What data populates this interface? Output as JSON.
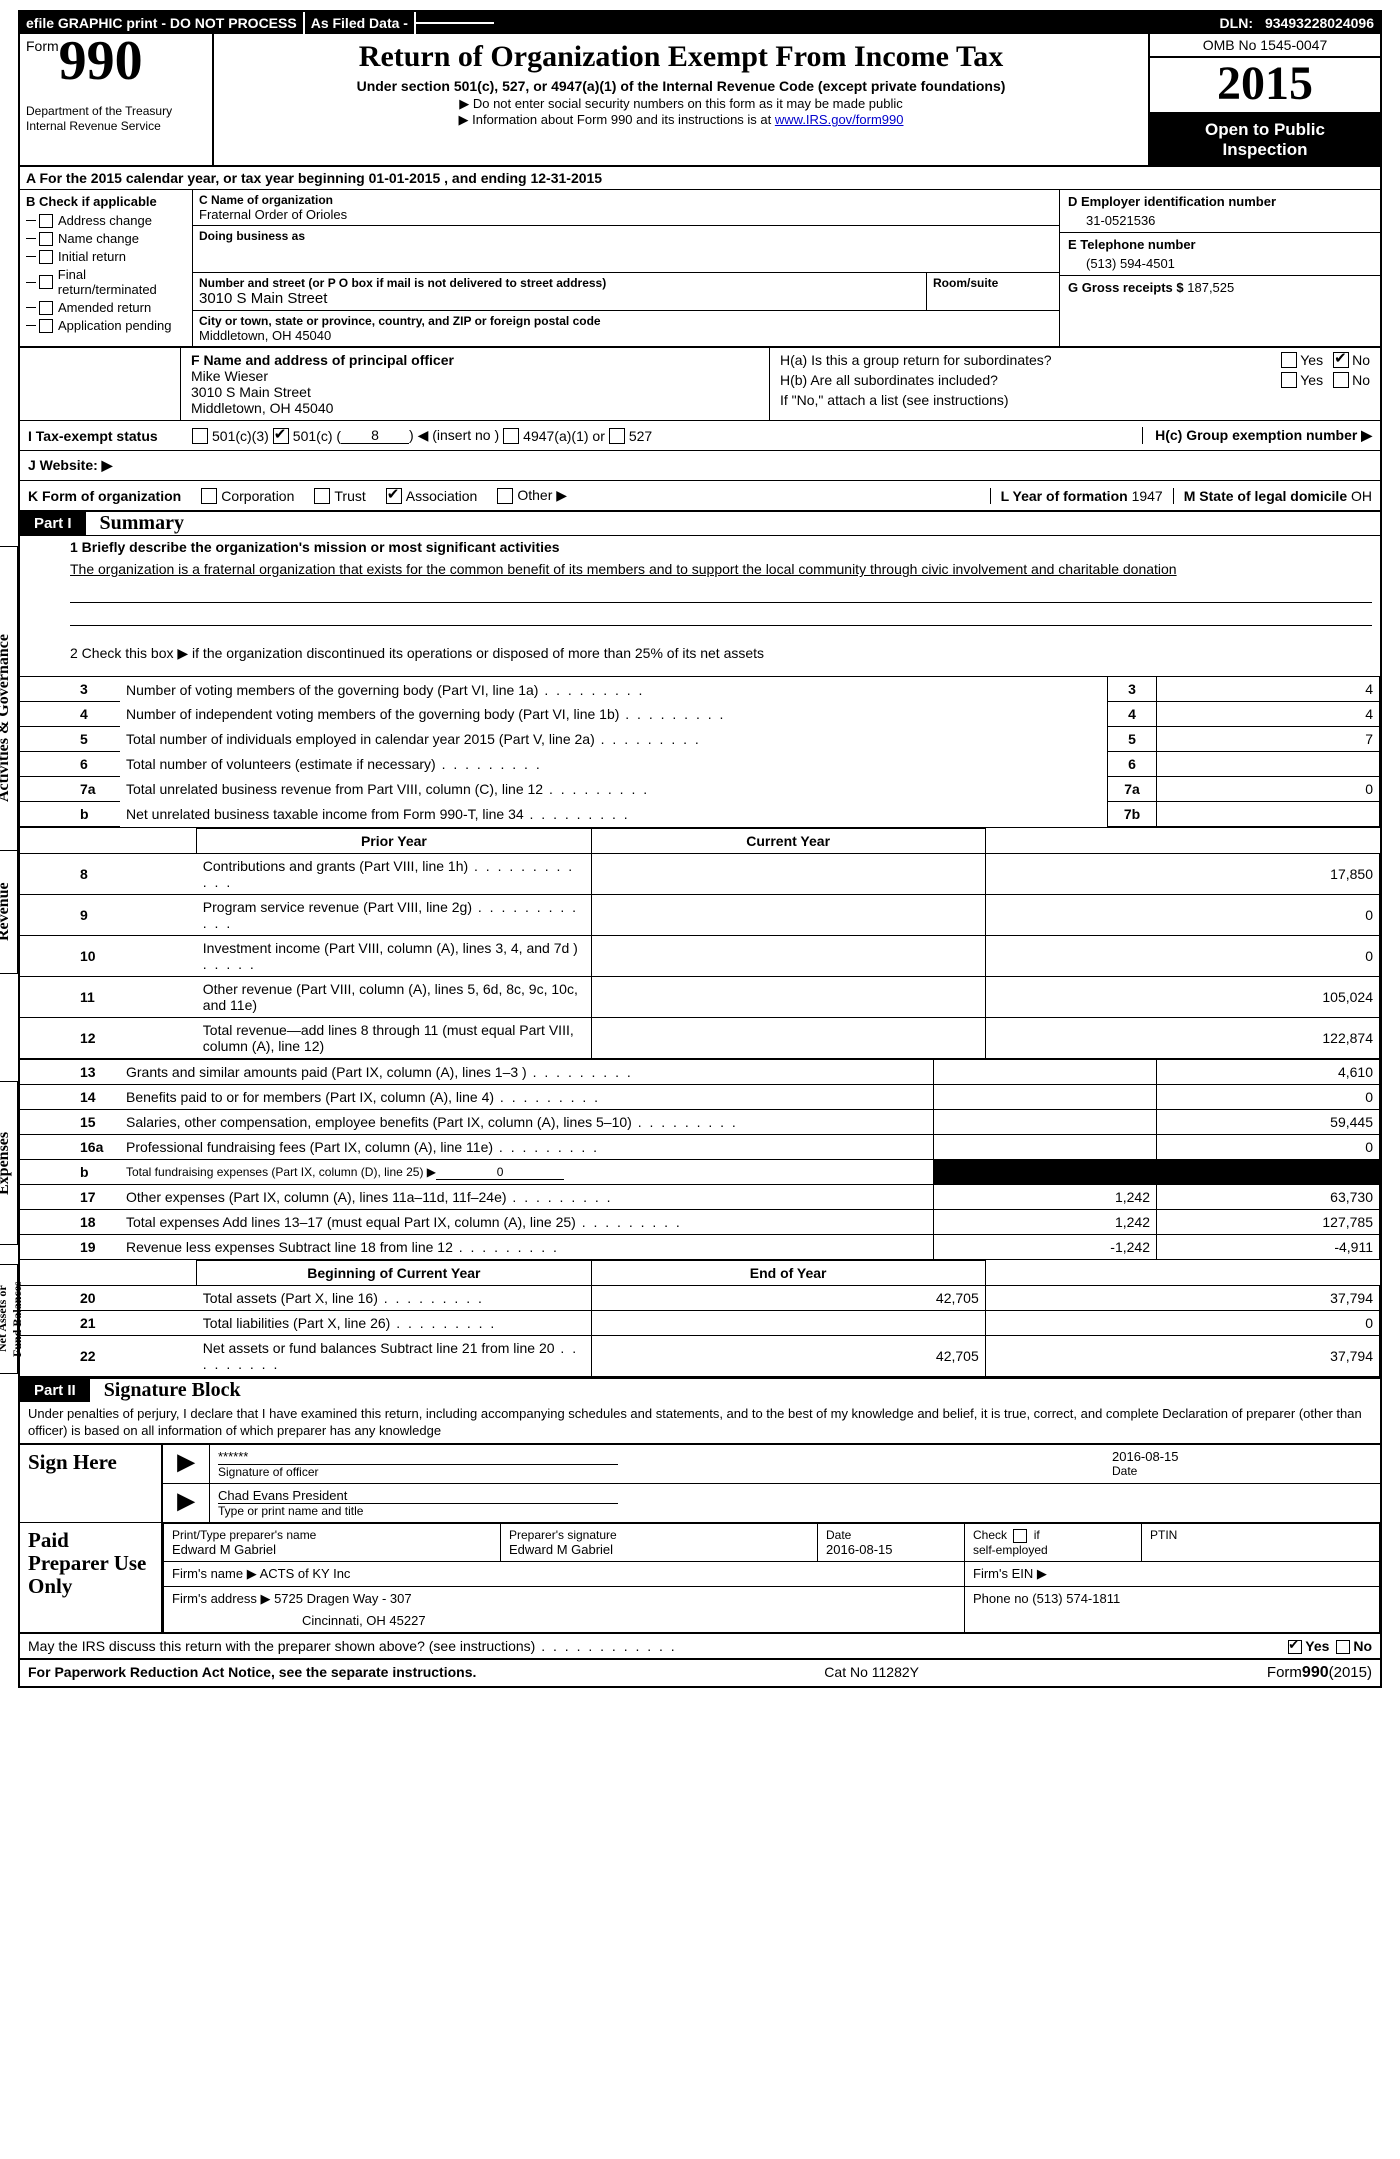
{
  "topbar": {
    "efile": "efile GRAPHIC print - DO NOT PROCESS",
    "asfiled": "As Filed Data -",
    "dln_label": "DLN:",
    "dln": "93493228024096"
  },
  "header": {
    "form_word": "Form",
    "form_number": "990",
    "agency1": "Department of the Treasury",
    "agency2": "Internal Revenue Service",
    "title": "Return of Organization Exempt From Income Tax",
    "sub1": "Under section 501(c), 527, or 4947(a)(1) of the Internal Revenue Code (except private foundations)",
    "sub2a": "▶ Do not enter social security numbers on this form as it may be made public",
    "sub2b": "▶ Information about Form 990 and its instructions is at ",
    "irs_link": "www.IRS.gov/form990",
    "omb": "OMB No 1545-0047",
    "year": "2015",
    "otp1": "Open to Public",
    "otp2": "Inspection"
  },
  "rowA": {
    "prefix": "A  For the 2015 calendar year, or tax year beginning ",
    "begin": "01-01-2015",
    "mid": "  , and ending ",
    "end": "12-31-2015"
  },
  "colB": {
    "label": "B  Check if applicable",
    "items": [
      "Address change",
      "Name change",
      "Initial return",
      "Final return/terminated",
      "Amended return",
      "Application pending"
    ]
  },
  "colC": {
    "name_label": "C Name of organization",
    "name": "Fraternal Order of Orioles",
    "dba_label": "Doing business as",
    "dba": "",
    "street_label": "Number and street (or P O  box if mail is not delivered to street address)",
    "room_label": "Room/suite",
    "street": "3010 S Main Street",
    "city_label": "City or town, state or province, country, and ZIP or foreign postal code",
    "city": "Middletown, OH  45040"
  },
  "colD": {
    "ein_label": "D Employer identification number",
    "ein": "31-0521536",
    "phone_label": "E Telephone number",
    "phone": "(513) 594-4501",
    "gross_label": "G Gross receipts $",
    "gross": "187,525"
  },
  "rowF": {
    "label": "F   Name and address of principal officer",
    "name": "Mike Wieser",
    "street": "3010 S Main Street",
    "city": "Middletown, OH  45040"
  },
  "rowH": {
    "ha": "H(a)  Is this a group return for subordinates?",
    "hb": "H(b)  Are all subordinates included?",
    "hnote": "If \"No,\" attach a list  (see instructions)",
    "hc": "H(c)   Group exemption number ▶",
    "yes": "Yes",
    "no": "No"
  },
  "rowI": {
    "label": "I   Tax-exempt status",
    "o1": "501(c)(3)",
    "o2": "501(c) ( ",
    "o2n": "8",
    "o2tail": " ) ◀ (insert no )",
    "o3": "4947(a)(1) or",
    "o4": "527"
  },
  "rowJ": {
    "label": "J   Website: ▶"
  },
  "rowK": {
    "label": "K Form of organization",
    "o1": "Corporation",
    "o2": "Trust",
    "o3": "Association",
    "o4": "Other ▶",
    "l_label": "L Year of formation",
    "l_val": "1947",
    "m_label": "M State of legal domicile",
    "m_val": "OH"
  },
  "part1": {
    "tag": "Part I",
    "title": "Summary",
    "vtab_gov": "Activities & Governance",
    "vtab_rev": "Revenue",
    "vtab_exp": "Expenses",
    "vtab_net": "Net Assets or Fund Balances",
    "l1_label": "1 Briefly describe the organization's mission or most significant activities",
    "l1_text": "The organization is a fraternal organization that exists for the common benefit of its members and to support the local community through civic involvement and charitable donation",
    "l2": "2  Check this box ▶     if the organization discontinued its operations or disposed of more than 25% of its net assets"
  },
  "lines37": [
    {
      "n": "3",
      "d": "Number of voting members of the governing body (Part VI, line 1a)",
      "k": "3",
      "v": "4"
    },
    {
      "n": "4",
      "d": "Number of independent voting members of the governing body (Part VI, line 1b)",
      "k": "4",
      "v": "4"
    },
    {
      "n": "5",
      "d": "Total number of individuals employed in calendar year 2015 (Part V, line 2a)",
      "k": "5",
      "v": "7"
    },
    {
      "n": "6",
      "d": "Total number of volunteers (estimate if necessary)",
      "k": "6",
      "v": ""
    },
    {
      "n": "7a",
      "d": "Total unrelated business revenue from Part VIII, column (C), line 12",
      "k": "7a",
      "v": "0"
    },
    {
      "n": "b",
      "d": "Net unrelated business taxable income from Form 990-T, line 34",
      "k": "7b",
      "v": ""
    }
  ],
  "pycy": {
    "prior": "Prior Year",
    "current": "Current Year",
    "bcy": "Beginning of Current Year",
    "eoy": "End of Year"
  },
  "lines812": [
    {
      "n": "8",
      "d": "Contributions and grants (Part VIII, line 1h)",
      "dots": "long",
      "p": "",
      "c": "17,850"
    },
    {
      "n": "9",
      "d": "Program service revenue (Part VIII, line 2g)",
      "dots": "long",
      "p": "",
      "c": "0"
    },
    {
      "n": "10",
      "d": "Investment income (Part VIII, column (A), lines 3, 4, and 7d )",
      "dots": "short",
      "p": "",
      "c": "0"
    },
    {
      "n": "11",
      "d": "Other revenue (Part VIII, column (A), lines 5, 6d, 8c, 9c, 10c, and 11e)",
      "dots": "",
      "p": "",
      "c": "105,024"
    },
    {
      "n": "12",
      "d": "Total revenue—add lines 8 through 11 (must equal Part VIII, column (A), line 12)",
      "dots": "",
      "p": "",
      "c": "122,874"
    }
  ],
  "lines1319": [
    {
      "n": "13",
      "d": "Grants and similar amounts paid (Part IX, column (A), lines 1–3 )",
      "p": "",
      "c": "4,610"
    },
    {
      "n": "14",
      "d": "Benefits paid to or for members (Part IX, column (A), line 4)",
      "p": "",
      "c": "0"
    },
    {
      "n": "15",
      "d": "Salaries, other compensation, employee benefits (Part IX, column (A), lines 5–10)",
      "p": "",
      "c": "59,445"
    },
    {
      "n": "16a",
      "d": "Professional fundraising fees (Part IX, column (A), line 11e)",
      "p": "",
      "c": "0"
    },
    {
      "n": "b",
      "d": "Total fundraising expenses (Part IX, column (D), line 25) ▶",
      "sub": true,
      "val": "0",
      "shade": true
    },
    {
      "n": "17",
      "d": "Other expenses (Part IX, column (A), lines 11a–11d, 11f–24e)",
      "p": "1,242",
      "c": "63,730"
    },
    {
      "n": "18",
      "d": "Total expenses  Add lines 13–17 (must equal Part IX, column (A), line 25)",
      "p": "1,242",
      "c": "127,785"
    },
    {
      "n": "19",
      "d": "Revenue less expenses  Subtract line 18 from line 12",
      "p": "-1,242",
      "c": "-4,911"
    }
  ],
  "lines2022": [
    {
      "n": "20",
      "d": "Total assets (Part X, line 16)",
      "p": "42,705",
      "c": "37,794"
    },
    {
      "n": "21",
      "d": "Total liabilities (Part X, line 26)",
      "p": "",
      "c": "0"
    },
    {
      "n": "22",
      "d": "Net assets or fund balances  Subtract line 21 from line 20",
      "p": "42,705",
      "c": "37,794"
    }
  ],
  "part2": {
    "tag": "Part II",
    "title": "Signature Block",
    "penalties": "Under penalties of perjury, I declare that I have examined this return, including accompanying schedules and statements, and to the best of my knowledge and belief, it is true, correct, and complete  Declaration of preparer (other than officer) is based on all information of which preparer has any knowledge"
  },
  "sign": {
    "here": "Sign Here",
    "sig_mask": "******",
    "sig_label": "Signature of officer",
    "date_label": "Date",
    "date": "2016-08-15",
    "officer": "Chad Evans President",
    "officer_label": "Type or print name and title"
  },
  "prep": {
    "side": "Paid Preparer Use Only",
    "c1h": "Print/Type preparer's name",
    "c1v": "Edward M Gabriel",
    "c2h": "Preparer's signature",
    "c2v": "Edward M Gabriel",
    "c3h": "Date",
    "c3v": "2016-08-15",
    "c4h": "Check       if self-employed",
    "c5h": "PTIN",
    "firm_name_l": "Firm's name    ▶",
    "firm_name": "ACTS of KY Inc",
    "firm_ein_l": "Firm's EIN ▶",
    "firm_addr_l": "Firm's address ▶",
    "firm_addr1": "5725 Dragen Way - 307",
    "firm_addr2": "Cincinnati, OH  45227",
    "phone_l": "Phone no  (513) 574-1811"
  },
  "discuss": {
    "q": "May the IRS discuss this return with the preparer shown above? (see instructions)",
    "yes": "Yes",
    "no": "No"
  },
  "footer": {
    "left": "For Paperwork Reduction Act Notice, see the separate instructions.",
    "mid": "Cat No  11282Y",
    "right_pre": "Form",
    "right_form": "990",
    "right_yr": "(2015)"
  }
}
